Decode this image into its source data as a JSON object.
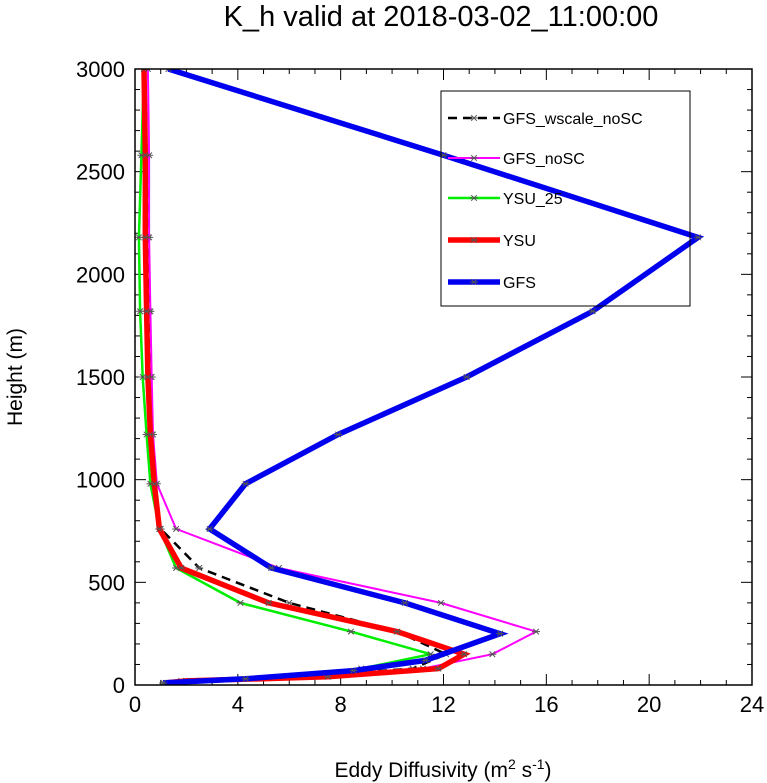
{
  "chart_data": {
    "type": "line",
    "title": "K_h valid at 2018-03-02_11:00:00",
    "xlabel": "Eddy Diffusivity (m",
    "xlabel_sup1": "2",
    "xlabel_mid": " s",
    "xlabel_sup2": "-1",
    "xlabel_end": ")",
    "ylabel": "Height (m)",
    "xlim": [
      0,
      24
    ],
    "ylim": [
      0,
      3000
    ],
    "xticks": [
      0,
      4,
      8,
      12,
      16,
      20,
      24
    ],
    "yticks": [
      0,
      500,
      1000,
      1500,
      2000,
      2500,
      3000
    ],
    "legend_position": "top-right",
    "series": [
      {
        "name": "GFS_wscale_noSC",
        "color": "#000000",
        "width": 2.5,
        "dash": "9,6",
        "points": [
          [
            1.3,
            10
          ],
          [
            2.1,
            20
          ],
          [
            6.3,
            40
          ],
          [
            10.8,
            80
          ],
          [
            12.1,
            150
          ],
          [
            10.2,
            260
          ],
          [
            6.0,
            400
          ],
          [
            2.5,
            570
          ],
          [
            1.0,
            760
          ],
          [
            0.75,
            980
          ],
          [
            0.65,
            1220
          ],
          [
            0.6,
            1500
          ],
          [
            0.55,
            1820
          ],
          [
            0.5,
            2180
          ],
          [
            0.45,
            2580
          ],
          [
            0.4,
            3000
          ]
        ]
      },
      {
        "name": "GFS_noSC",
        "color": "#ff00ff",
        "width": 2,
        "points": [
          [
            1.2,
            10
          ],
          [
            2.0,
            20
          ],
          [
            6.5,
            40
          ],
          [
            11.2,
            80
          ],
          [
            13.9,
            150
          ],
          [
            15.6,
            260
          ],
          [
            11.9,
            400
          ],
          [
            5.6,
            570
          ],
          [
            1.6,
            760
          ],
          [
            0.85,
            980
          ],
          [
            0.7,
            1220
          ],
          [
            0.65,
            1500
          ],
          [
            0.6,
            1820
          ],
          [
            0.55,
            2180
          ],
          [
            0.55,
            2580
          ],
          [
            0.5,
            3000
          ]
        ]
      },
      {
        "name": "YSU_25",
        "color": "#00ee00",
        "width": 2.5,
        "points": [
          [
            1.1,
            10
          ],
          [
            1.8,
            20
          ],
          [
            5.5,
            40
          ],
          [
            8.8,
            80
          ],
          [
            11.5,
            150
          ],
          [
            8.4,
            260
          ],
          [
            4.1,
            400
          ],
          [
            1.6,
            570
          ],
          [
            0.95,
            760
          ],
          [
            0.6,
            980
          ],
          [
            0.45,
            1220
          ],
          [
            0.3,
            1500
          ],
          [
            0.2,
            1820
          ],
          [
            0.15,
            2180
          ],
          [
            0.25,
            2580
          ],
          [
            0.35,
            3000
          ]
        ]
      },
      {
        "name": "YSU",
        "color": "#ff0000",
        "width": 5.5,
        "points": [
          [
            1.2,
            10
          ],
          [
            2.0,
            20
          ],
          [
            7.5,
            40
          ],
          [
            11.8,
            80
          ],
          [
            12.8,
            150
          ],
          [
            10.2,
            260
          ],
          [
            5.2,
            400
          ],
          [
            1.8,
            570
          ],
          [
            0.95,
            760
          ],
          [
            0.75,
            980
          ],
          [
            0.6,
            1220
          ],
          [
            0.5,
            1500
          ],
          [
            0.45,
            1820
          ],
          [
            0.4,
            2180
          ],
          [
            0.4,
            2580
          ],
          [
            0.35,
            3000
          ]
        ]
      },
      {
        "name": "GFS",
        "color": "#0000ee",
        "width": 5.5,
        "points": [
          [
            1.1,
            10
          ],
          [
            4.3,
            30
          ],
          [
            8.5,
            70
          ],
          [
            11.3,
            120
          ],
          [
            14.2,
            250
          ],
          [
            10.5,
            400
          ],
          [
            5.3,
            570
          ],
          [
            2.9,
            760
          ],
          [
            4.3,
            980
          ],
          [
            7.9,
            1220
          ],
          [
            12.9,
            1500
          ],
          [
            17.8,
            1820
          ],
          [
            21.9,
            2180
          ],
          [
            12.0,
            2580
          ],
          [
            1.3,
            3000
          ]
        ]
      }
    ]
  }
}
